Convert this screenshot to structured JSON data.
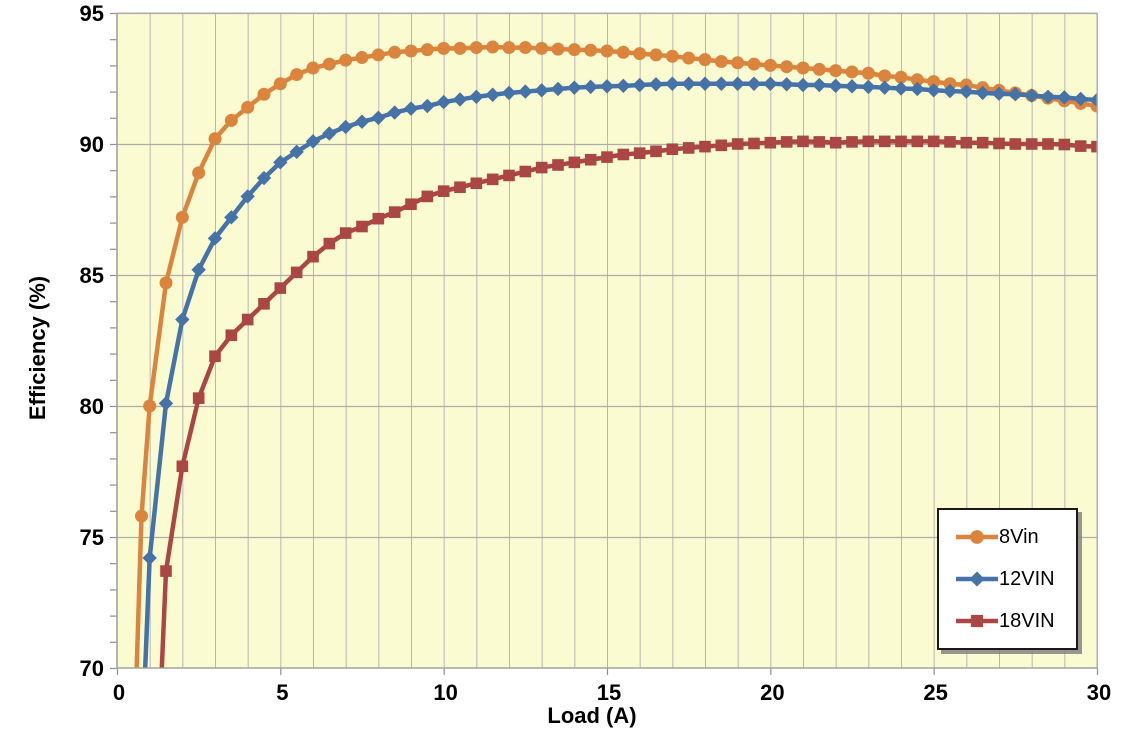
{
  "chart_data": {
    "type": "line",
    "title": "",
    "xlabel": "Load (A)",
    "ylabel": "Efficiency (%)",
    "xlim": [
      0,
      30
    ],
    "ylim": [
      70,
      95
    ],
    "x_major_ticks": [
      0,
      5,
      10,
      15,
      20,
      25,
      30
    ],
    "x_minor_grid_step": 1,
    "y_major_ticks": [
      70,
      75,
      80,
      85,
      90,
      95
    ],
    "y_minor_tick_step": 1,
    "grid": "major horizontal every 5, vertical every 1",
    "legend_position": "bottom-right",
    "series": [
      {
        "name": "8Vin",
        "marker": "circle",
        "color": "#DB843D",
        "points": [
          [
            0.5,
            66.0
          ],
          [
            0.75,
            75.8
          ],
          [
            1,
            80.0
          ],
          [
            1.5,
            84.7
          ],
          [
            2,
            87.2
          ],
          [
            2.5,
            88.9
          ],
          [
            3,
            90.2
          ],
          [
            3.5,
            90.9
          ],
          [
            4,
            91.4
          ],
          [
            4.5,
            91.9
          ],
          [
            5,
            92.3
          ],
          [
            5.5,
            92.65
          ],
          [
            6,
            92.9
          ],
          [
            6.5,
            93.05
          ],
          [
            7,
            93.2
          ],
          [
            7.5,
            93.3
          ],
          [
            8,
            93.4
          ],
          [
            8.5,
            93.5
          ],
          [
            9,
            93.55
          ],
          [
            9.5,
            93.6
          ],
          [
            10,
            93.65
          ],
          [
            10.5,
            93.65
          ],
          [
            11,
            93.68
          ],
          [
            11.5,
            93.7
          ],
          [
            12,
            93.68
          ],
          [
            12.5,
            93.68
          ],
          [
            13,
            93.65
          ],
          [
            13.5,
            93.62
          ],
          [
            14,
            93.6
          ],
          [
            14.5,
            93.58
          ],
          [
            15,
            93.55
          ],
          [
            15.5,
            93.5
          ],
          [
            16,
            93.45
          ],
          [
            16.5,
            93.4
          ],
          [
            17,
            93.35
          ],
          [
            17.5,
            93.28
          ],
          [
            18,
            93.22
          ],
          [
            18.5,
            93.15
          ],
          [
            19,
            93.1
          ],
          [
            19.5,
            93.05
          ],
          [
            20,
            93.0
          ],
          [
            20.5,
            92.95
          ],
          [
            21,
            92.9
          ],
          [
            21.5,
            92.85
          ],
          [
            22,
            92.8
          ],
          [
            22.5,
            92.75
          ],
          [
            23,
            92.7
          ],
          [
            23.5,
            92.6
          ],
          [
            24,
            92.55
          ],
          [
            24.5,
            92.45
          ],
          [
            25,
            92.38
          ],
          [
            25.5,
            92.3
          ],
          [
            26,
            92.25
          ],
          [
            26.5,
            92.15
          ],
          [
            27,
            92.05
          ],
          [
            27.5,
            91.95
          ],
          [
            28,
            91.85
          ],
          [
            28.5,
            91.75
          ],
          [
            29,
            91.65
          ],
          [
            29.5,
            91.55
          ],
          [
            30,
            91.45
          ]
        ]
      },
      {
        "name": "12VIN",
        "marker": "diamond",
        "color": "#4572A7",
        "points": [
          [
            0.75,
            66.5
          ],
          [
            1,
            74.2
          ],
          [
            1.5,
            80.1
          ],
          [
            2,
            83.3
          ],
          [
            2.5,
            85.2
          ],
          [
            3,
            86.4
          ],
          [
            3.5,
            87.2
          ],
          [
            4,
            88.0
          ],
          [
            4.5,
            88.7
          ],
          [
            5,
            89.3
          ],
          [
            5.5,
            89.7
          ],
          [
            6,
            90.1
          ],
          [
            6.5,
            90.4
          ],
          [
            7,
            90.65
          ],
          [
            7.5,
            90.85
          ],
          [
            8,
            91.0
          ],
          [
            8.5,
            91.2
          ],
          [
            9,
            91.35
          ],
          [
            9.5,
            91.45
          ],
          [
            10,
            91.6
          ],
          [
            10.5,
            91.7
          ],
          [
            11,
            91.8
          ],
          [
            11.5,
            91.88
          ],
          [
            12,
            91.95
          ],
          [
            12.5,
            92.0
          ],
          [
            13,
            92.05
          ],
          [
            13.5,
            92.1
          ],
          [
            14,
            92.15
          ],
          [
            14.5,
            92.18
          ],
          [
            15,
            92.2
          ],
          [
            15.5,
            92.22
          ],
          [
            16,
            92.25
          ],
          [
            16.5,
            92.28
          ],
          [
            17,
            92.3
          ],
          [
            17.5,
            92.3
          ],
          [
            18,
            92.3
          ],
          [
            18.5,
            92.3
          ],
          [
            19,
            92.3
          ],
          [
            19.5,
            92.3
          ],
          [
            20,
            92.3
          ],
          [
            20.5,
            92.28
          ],
          [
            21,
            92.25
          ],
          [
            21.5,
            92.25
          ],
          [
            22,
            92.22
          ],
          [
            22.5,
            92.2
          ],
          [
            23,
            92.18
          ],
          [
            23.5,
            92.15
          ],
          [
            24,
            92.12
          ],
          [
            24.5,
            92.1
          ],
          [
            25,
            92.05
          ],
          [
            25.5,
            92.02
          ],
          [
            26,
            92.0
          ],
          [
            26.5,
            91.95
          ],
          [
            27,
            91.92
          ],
          [
            27.5,
            91.9
          ],
          [
            28,
            91.85
          ],
          [
            28.5,
            91.8
          ],
          [
            29,
            91.78
          ],
          [
            29.5,
            91.72
          ],
          [
            30,
            91.68
          ]
        ]
      },
      {
        "name": "18VIN",
        "marker": "square",
        "color": "#AA4643",
        "points": [
          [
            1.25,
            66.5
          ],
          [
            1.5,
            73.7
          ],
          [
            2,
            77.7
          ],
          [
            2.5,
            80.3
          ],
          [
            3,
            81.9
          ],
          [
            3.5,
            82.7
          ],
          [
            4,
            83.3
          ],
          [
            4.5,
            83.9
          ],
          [
            5,
            84.5
          ],
          [
            5.5,
            85.1
          ],
          [
            6,
            85.7
          ],
          [
            6.5,
            86.2
          ],
          [
            7,
            86.6
          ],
          [
            7.5,
            86.85
          ],
          [
            8,
            87.15
          ],
          [
            8.5,
            87.4
          ],
          [
            9,
            87.7
          ],
          [
            9.5,
            88.0
          ],
          [
            10,
            88.2
          ],
          [
            10.5,
            88.35
          ],
          [
            11,
            88.5
          ],
          [
            11.5,
            88.65
          ],
          [
            12,
            88.8
          ],
          [
            12.5,
            88.95
          ],
          [
            13,
            89.1
          ],
          [
            13.5,
            89.2
          ],
          [
            14,
            89.3
          ],
          [
            14.5,
            89.4
          ],
          [
            15,
            89.5
          ],
          [
            15.5,
            89.6
          ],
          [
            16,
            89.65
          ],
          [
            16.5,
            89.72
          ],
          [
            17,
            89.8
          ],
          [
            17.5,
            89.85
          ],
          [
            18,
            89.9
          ],
          [
            18.5,
            89.95
          ],
          [
            19,
            90.0
          ],
          [
            19.5,
            90.02
          ],
          [
            20,
            90.05
          ],
          [
            20.5,
            90.08
          ],
          [
            21,
            90.1
          ],
          [
            21.5,
            90.08
          ],
          [
            22,
            90.05
          ],
          [
            22.5,
            90.08
          ],
          [
            23,
            90.1
          ],
          [
            23.5,
            90.1
          ],
          [
            24,
            90.1
          ],
          [
            24.5,
            90.1
          ],
          [
            25,
            90.1
          ],
          [
            25.5,
            90.08
          ],
          [
            26,
            90.05
          ],
          [
            26.5,
            90.05
          ],
          [
            27,
            90.02
          ],
          [
            27.5,
            90.0
          ],
          [
            28,
            90.0
          ],
          [
            28.5,
            90.0
          ],
          [
            29,
            89.98
          ],
          [
            29.5,
            89.92
          ],
          [
            30,
            89.9
          ]
        ]
      }
    ]
  },
  "colors": {
    "plot_background": "#FBFBD1",
    "grid_vertical": "#B7B7B7",
    "grid_horizontal": "#ACACAC",
    "axis_line": "#8F8F8F",
    "tick_label": "#000000",
    "legend_border": "#1A1A1A"
  }
}
